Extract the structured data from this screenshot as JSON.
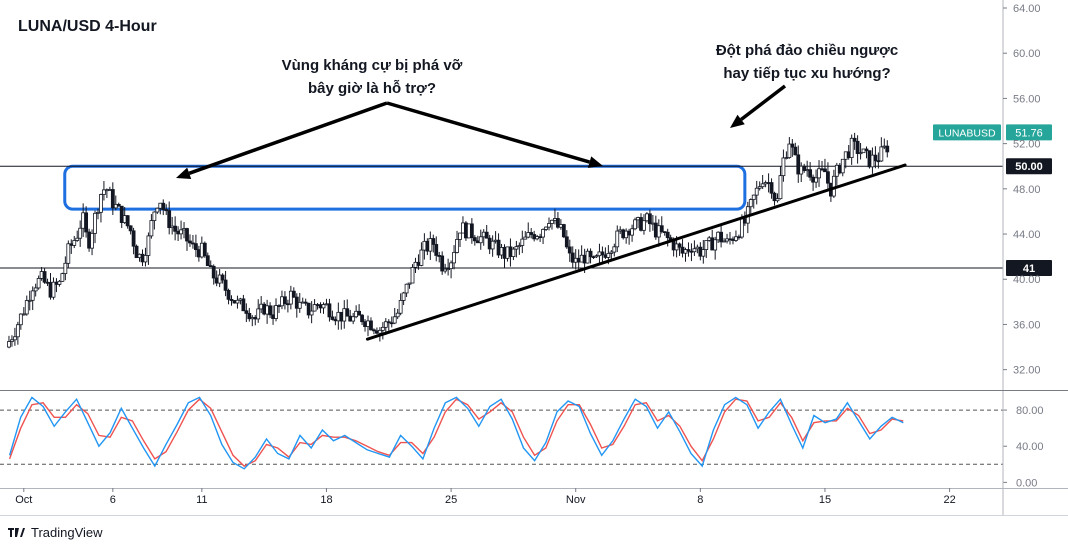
{
  "chart_data": {
    "type": "candlestick",
    "title": "LUNA/USD 4-Hour",
    "price_axis": {
      "ticks": [
        "64.00",
        "60.00",
        "56.00",
        "52.00",
        "48.00",
        "44.00",
        "40.00",
        "36.00",
        "32.00"
      ],
      "tick_values": [
        64,
        60,
        56,
        52,
        48,
        44,
        40,
        36,
        32
      ],
      "range": [
        30.2,
        64.0
      ]
    },
    "time_axis": {
      "ticks": [
        "Oct",
        "6",
        "11",
        "18",
        "25",
        "Nov",
        "8",
        "15",
        "22"
      ],
      "tick_positions_days": [
        0,
        5,
        10,
        17,
        24,
        31,
        38,
        45,
        52
      ],
      "range_days": [
        -1,
        55
      ]
    },
    "current_price": {
      "label": "LUNABUSD",
      "value": "51.76",
      "color": "#26a69a"
    },
    "horizontal_levels": [
      {
        "value": 50.0,
        "label": "50.00"
      },
      {
        "value": 41.0,
        "label": 41.0
      }
    ],
    "trendline": {
      "from": {
        "day": 19.3,
        "price": 34.7
      },
      "to": {
        "day": 49.5,
        "price": 50.1
      }
    },
    "zone": {
      "from_day": 2.3,
      "to_day": 40.5,
      "low": 46.2,
      "high": 50.0,
      "color": "#1e6fe0"
    },
    "annotations": [
      {
        "text_lines": [
          "Vùng kháng cự bị phá vỡ",
          "bây giờ là hỗ trợ?"
        ]
      },
      {
        "text_lines": [
          "Đột phá đảo chiều ngược",
          "hay tiếp tục xu hướng?"
        ]
      }
    ],
    "close_path": [
      [
        -1,
        34.0
      ],
      [
        -0.5,
        35.5
      ],
      [
        0,
        37.3
      ],
      [
        0.5,
        39.5
      ],
      [
        1.0,
        40.0
      ],
      [
        1.5,
        39.0
      ],
      [
        2.0,
        39.6
      ],
      [
        2.5,
        42.5
      ],
      [
        3.0,
        44.0
      ],
      [
        3.3,
        45.5
      ],
      [
        3.6,
        43.0
      ],
      [
        4.0,
        45.5
      ],
      [
        4.3,
        47.5
      ],
      [
        4.6,
        48.2
      ],
      [
        5.0,
        46.8
      ],
      [
        5.5,
        45.6
      ],
      [
        6.0,
        44.3
      ],
      [
        6.3,
        42.5
      ],
      [
        6.6,
        41.8
      ],
      [
        7.0,
        43.5
      ],
      [
        7.3,
        46.0
      ],
      [
        7.6,
        47.3
      ],
      [
        8.0,
        45.5
      ],
      [
        8.5,
        44.3
      ],
      [
        9.0,
        43.8
      ],
      [
        9.5,
        42.8
      ],
      [
        10.0,
        42.5
      ],
      [
        10.5,
        40.5
      ],
      [
        11.0,
        39.8
      ],
      [
        11.5,
        38.8
      ],
      [
        12.0,
        37.8
      ],
      [
        12.5,
        37.5
      ],
      [
        13.0,
        36.5
      ],
      [
        13.5,
        37.5
      ],
      [
        14.0,
        37.0
      ],
      [
        14.5,
        37.8
      ],
      [
        15.0,
        38.6
      ],
      [
        15.5,
        37.6
      ],
      [
        16.0,
        37.2
      ],
      [
        16.5,
        37.8
      ],
      [
        17.0,
        37.6
      ],
      [
        17.5,
        36.9
      ],
      [
        18.0,
        36.7
      ],
      [
        18.5,
        36.5
      ],
      [
        19.0,
        36.6
      ],
      [
        19.5,
        36.1
      ],
      [
        20.0,
        35.6
      ],
      [
        20.5,
        36.2
      ],
      [
        21.0,
        37.0
      ],
      [
        21.5,
        39.2
      ],
      [
        22.0,
        41.5
      ],
      [
        22.5,
        42.7
      ],
      [
        23.0,
        43.2
      ],
      [
        23.5,
        41.3
      ],
      [
        24.0,
        41.8
      ],
      [
        24.5,
        44.6
      ],
      [
        25.0,
        44.2
      ],
      [
        25.5,
        43.8
      ],
      [
        26.0,
        43.4
      ],
      [
        26.5,
        42.8
      ],
      [
        27.0,
        42.2
      ],
      [
        27.5,
        42.3
      ],
      [
        28.0,
        43.2
      ],
      [
        28.5,
        44.0
      ],
      [
        29.0,
        44.2
      ],
      [
        29.5,
        45.5
      ],
      [
        30.0,
        44.6
      ],
      [
        30.3,
        44.0
      ],
      [
        30.6,
        42.0
      ],
      [
        31.0,
        41.5
      ],
      [
        31.5,
        42.0
      ],
      [
        32.0,
        41.4
      ],
      [
        32.5,
        42.2
      ],
      [
        33.0,
        43.1
      ],
      [
        33.5,
        44.0
      ],
      [
        34.0,
        44.6
      ],
      [
        34.5,
        44.8
      ],
      [
        35.0,
        45.2
      ],
      [
        35.5,
        44.3
      ],
      [
        36.0,
        43.8
      ],
      [
        36.5,
        43.1
      ],
      [
        37.0,
        42.3
      ],
      [
        37.5,
        43.0
      ],
      [
        38.0,
        42.5
      ],
      [
        38.5,
        43.0
      ],
      [
        39.0,
        43.8
      ],
      [
        39.5,
        43.2
      ],
      [
        40.0,
        44.1
      ],
      [
        40.5,
        45.0
      ],
      [
        41.0,
        47.2
      ],
      [
        41.5,
        49.0
      ],
      [
        42.0,
        48.3
      ],
      [
        42.3,
        46.5
      ],
      [
        42.6,
        50.2
      ],
      [
        43.0,
        52.3
      ],
      [
        43.3,
        50.6
      ],
      [
        43.6,
        49.5
      ],
      [
        44.0,
        49.8
      ],
      [
        44.5,
        49.0
      ],
      [
        45.0,
        49.5
      ],
      [
        45.3,
        47.8
      ],
      [
        45.6,
        49.2
      ],
      [
        46.0,
        50.6
      ],
      [
        46.5,
        51.8
      ],
      [
        47.0,
        51.3
      ],
      [
        47.5,
        50.5
      ],
      [
        48.0,
        50.8
      ],
      [
        48.5,
        51.76
      ]
    ],
    "oscillator": {
      "ticks": [
        "80.00",
        "40.00",
        "0.00"
      ],
      "tick_values": [
        80,
        40,
        0
      ],
      "range": [
        -4,
        100
      ],
      "levels": [
        80,
        20
      ],
      "series": [
        {
          "color": "#2196f3",
          "values": [
            30,
            72,
            94,
            84,
            62,
            78,
            92,
            66,
            40,
            55,
            82,
            60,
            38,
            18,
            42,
            64,
            88,
            94,
            74,
            42,
            22,
            15,
            28,
            48,
            32,
            26,
            52,
            38,
            58,
            46,
            52,
            44,
            36,
            32,
            28,
            52,
            40,
            26,
            60,
            88,
            94,
            82,
            62,
            84,
            92,
            70,
            38,
            24,
            44,
            78,
            90,
            84,
            54,
            30,
            46,
            70,
            92,
            84,
            60,
            78,
            56,
            32,
            18,
            58,
            86,
            94,
            86,
            60,
            78,
            92,
            64,
            38,
            74,
            66,
            70,
            88,
            68,
            48,
            62,
            72,
            66
          ]
        },
        {
          "color": "#ef5350",
          "values": [
            26,
            60,
            86,
            88,
            72,
            72,
            86,
            76,
            52,
            50,
            72,
            68,
            46,
            26,
            34,
            56,
            80,
            92,
            82,
            56,
            30,
            18,
            24,
            42,
            38,
            28,
            44,
            42,
            52,
            50,
            50,
            46,
            40,
            34,
            30,
            44,
            44,
            32,
            50,
            78,
            92,
            86,
            70,
            78,
            88,
            78,
            50,
            30,
            38,
            68,
            86,
            86,
            64,
            38,
            42,
            62,
            86,
            88,
            68,
            74,
            62,
            40,
            24,
            48,
            78,
            92,
            90,
            68,
            72,
            88,
            72,
            46,
            66,
            68,
            68,
            82,
            74,
            54,
            58,
            70,
            68
          ]
        }
      ]
    },
    "watermark": "TradingView"
  }
}
